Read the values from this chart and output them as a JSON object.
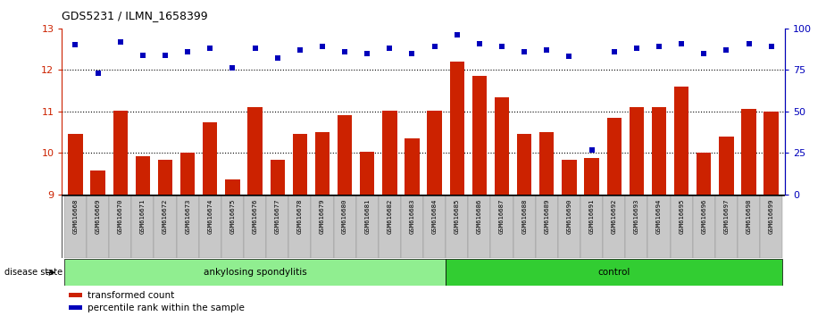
{
  "title": "GDS5231 / ILMN_1658399",
  "samples": [
    "GSM616668",
    "GSM616669",
    "GSM616670",
    "GSM616671",
    "GSM616672",
    "GSM616673",
    "GSM616674",
    "GSM616675",
    "GSM616676",
    "GSM616677",
    "GSM616678",
    "GSM616679",
    "GSM616680",
    "GSM616681",
    "GSM616682",
    "GSM616683",
    "GSM616684",
    "GSM616685",
    "GSM616686",
    "GSM616687",
    "GSM616688",
    "GSM616689",
    "GSM616690",
    "GSM616691",
    "GSM616692",
    "GSM616693",
    "GSM616694",
    "GSM616695",
    "GSM616696",
    "GSM616697",
    "GSM616698",
    "GSM616699"
  ],
  "bar_values": [
    10.45,
    9.57,
    11.02,
    9.92,
    9.83,
    10.0,
    10.73,
    9.35,
    11.1,
    9.83,
    10.45,
    10.5,
    10.9,
    10.02,
    11.02,
    10.35,
    11.02,
    12.2,
    11.85,
    11.35,
    10.45,
    10.5,
    9.83,
    9.87,
    10.85,
    11.1,
    11.1,
    11.6,
    10.0,
    10.4,
    11.05,
    11.0
  ],
  "percentile_values": [
    90,
    73,
    92,
    84,
    84,
    86,
    88,
    76,
    88,
    82,
    87,
    89,
    86,
    85,
    88,
    85,
    89,
    96,
    91,
    89,
    86,
    87,
    83,
    27,
    86,
    88,
    89,
    91,
    85,
    87,
    91,
    89
  ],
  "disease_groups": [
    {
      "label": "ankylosing spondylitis",
      "start": 0,
      "end": 17,
      "color": "#90EE90"
    },
    {
      "label": "control",
      "start": 17,
      "end": 32,
      "color": "#32CD32"
    }
  ],
  "bar_color": "#CC2200",
  "percentile_color": "#0000BB",
  "ylim_left": [
    9,
    13
  ],
  "ylim_right": [
    0,
    100
  ],
  "yticks_left": [
    9,
    10,
    11,
    12,
    13
  ],
  "yticks_right": [
    0,
    25,
    50,
    75,
    100
  ],
  "grid_values": [
    10,
    11,
    12
  ],
  "legend_items": [
    {
      "label": "transformed count",
      "color": "#CC2200"
    },
    {
      "label": "percentile rank within the sample",
      "color": "#0000BB"
    }
  ],
  "disease_state_label": "disease state",
  "background_color": "#ffffff",
  "tick_bg_color": "#c8c8c8",
  "left_color": "#CC2200",
  "right_color": "#0000BB"
}
